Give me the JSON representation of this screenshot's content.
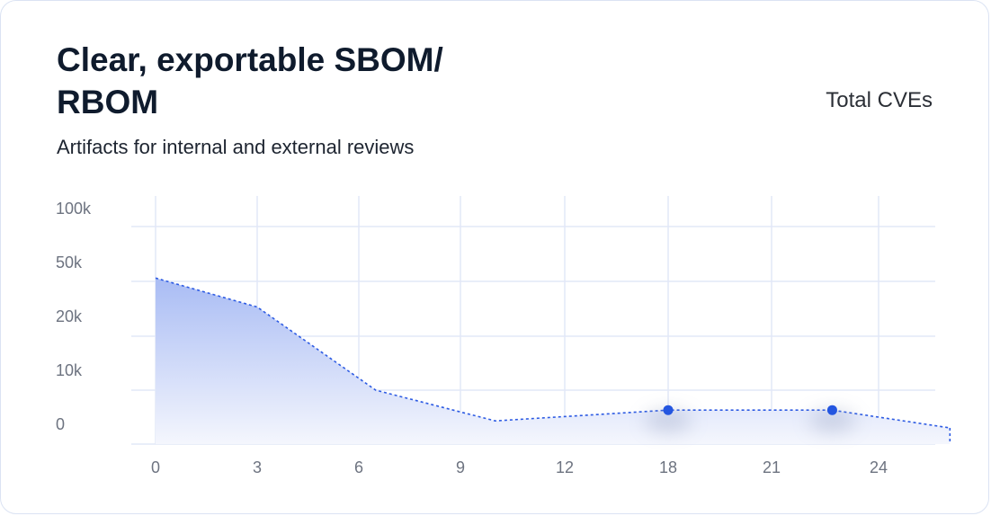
{
  "header": {
    "title": "Clear, exportable SBOM/ RBOM",
    "subtitle": "Artifacts for internal and external reviews",
    "metric_label": "Total CVEs"
  },
  "colors": {
    "line": "#2d5be3",
    "fill_top": "#a9bcf4",
    "fill_bottom": "#f4f6fd",
    "grid": "#e2e8f7",
    "point": "#2456e0"
  },
  "chart_data": {
    "type": "area",
    "x_ticks": [
      "0",
      "3",
      "6",
      "9",
      "12",
      "18",
      "21",
      "24"
    ],
    "y_ticks": [
      "0",
      "10k",
      "20k",
      "50k",
      "100k"
    ],
    "y_tick_values_note_free": true,
    "series": [
      {
        "points": [
          {
            "x": 0,
            "y": 53000
          },
          {
            "x": 3,
            "y": 36000
          },
          {
            "x": 6.5,
            "y": 10000
          },
          {
            "x": 10,
            "y": 4300
          },
          {
            "x": 18,
            "y": 6300,
            "marker": true
          },
          {
            "x": 22.7,
            "y": 6300,
            "marker": true
          },
          {
            "x": 26,
            "y": 3000
          }
        ]
      }
    ],
    "x_range": [
      0,
      26
    ],
    "grid": true,
    "legend": "none"
  }
}
